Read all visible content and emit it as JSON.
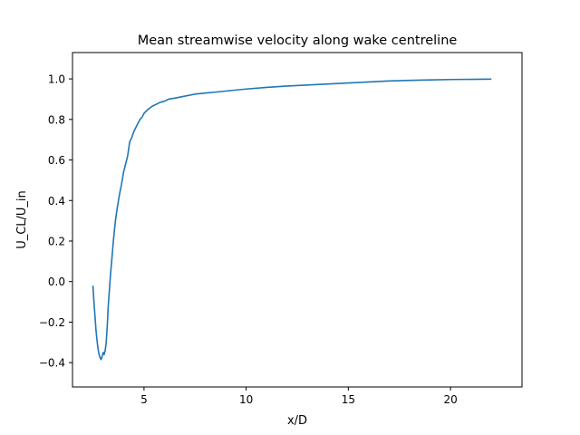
{
  "chart_data": {
    "type": "line",
    "title": "Mean streamwise velocity along wake centreline",
    "xlabel": "x/D",
    "ylabel": "U_CL/U_in",
    "xlim": [
      1.5,
      23.5
    ],
    "ylim": [
      -0.52,
      1.13
    ],
    "xticks": [
      5,
      10,
      15,
      20
    ],
    "yticks": [
      -0.4,
      -0.2,
      0.0,
      0.2,
      0.4,
      0.6,
      0.8,
      1.0
    ],
    "xtick_labels": [
      "5",
      "10",
      "15",
      "20"
    ],
    "ytick_labels": [
      "−0.4",
      "−0.2",
      "0.0",
      "0.2",
      "0.4",
      "0.6",
      "0.8",
      "1.0"
    ],
    "grid": false,
    "series": [
      {
        "color": "#1f77b4",
        "x": [
          2.5,
          2.55,
          2.6,
          2.65,
          2.7,
          2.75,
          2.8,
          2.85,
          2.9,
          2.95,
          3.0,
          3.05,
          3.1,
          3.15,
          3.2,
          3.25,
          3.3,
          3.35,
          3.4,
          3.45,
          3.5,
          3.55,
          3.6,
          3.7,
          3.8,
          3.9,
          4.0,
          4.1,
          4.2,
          4.3,
          4.4,
          4.5,
          4.6,
          4.7,
          4.8,
          4.9,
          5.0,
          5.2,
          5.4,
          5.6,
          5.8,
          6.0,
          6.2,
          6.5,
          7.0,
          7.5,
          8.0,
          8.5,
          9.0,
          10.0,
          11.0,
          12.0,
          13.0,
          14.0,
          15.0,
          16.0,
          17.0,
          18.0,
          19.0,
          20.0,
          21.0,
          22.0
        ],
        "y": [
          -0.02,
          -0.1,
          -0.17,
          -0.24,
          -0.29,
          -0.33,
          -0.36,
          -0.375,
          -0.385,
          -0.37,
          -0.35,
          -0.36,
          -0.34,
          -0.3,
          -0.22,
          -0.12,
          -0.05,
          0.02,
          0.08,
          0.14,
          0.2,
          0.25,
          0.3,
          0.37,
          0.43,
          0.48,
          0.54,
          0.58,
          0.62,
          0.69,
          0.71,
          0.74,
          0.76,
          0.78,
          0.8,
          0.81,
          0.83,
          0.85,
          0.865,
          0.875,
          0.885,
          0.89,
          0.9,
          0.905,
          0.915,
          0.925,
          0.93,
          0.935,
          0.94,
          0.95,
          0.958,
          0.965,
          0.97,
          0.975,
          0.98,
          0.985,
          0.99,
          0.993,
          0.995,
          0.997,
          0.998,
          0.999
        ]
      }
    ]
  }
}
